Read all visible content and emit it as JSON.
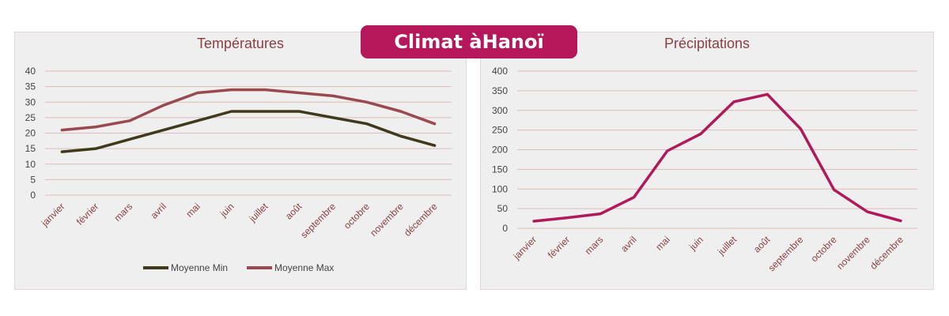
{
  "banner": {
    "title": "Climat àHanoï"
  },
  "chart_data": [
    {
      "type": "line",
      "title": "Températures",
      "categories": [
        "janvier",
        "février",
        "mars",
        "avril",
        "mai",
        "juin",
        "juillet",
        "août",
        "septembre",
        "octobre",
        "novembre",
        "décembre"
      ],
      "ylim": [
        0,
        40
      ],
      "yticks": [
        0,
        5,
        10,
        15,
        20,
        25,
        30,
        35,
        40
      ],
      "grid": true,
      "legend": "bottom",
      "series": [
        {
          "name": "Moyenne Min",
          "color": "#3e3a1a",
          "values": [
            14,
            15,
            18,
            21,
            24,
            27,
            27,
            27,
            25,
            23,
            19,
            16
          ]
        },
        {
          "name": "Moyenne Max",
          "color": "#9a4a4e",
          "values": [
            21,
            22,
            24,
            29,
            33,
            34,
            34,
            33,
            32,
            30,
            27,
            23
          ]
        }
      ]
    },
    {
      "type": "line",
      "title": "Précipitations",
      "categories": [
        "janvier",
        "février",
        "mars",
        "avril",
        "mai",
        "juin",
        "juillet",
        "août",
        "septembre",
        "octobre",
        "novembre",
        "décembre"
      ],
      "ylim": [
        0,
        400
      ],
      "yticks": [
        0,
        50,
        100,
        150,
        200,
        250,
        300,
        350,
        400
      ],
      "grid": true,
      "legend": "none",
      "series": [
        {
          "color": "#b0195a",
          "values": [
            18,
            27,
            37,
            79,
            197,
            240,
            322,
            341,
            253,
            98,
            42,
            19
          ]
        }
      ]
    }
  ]
}
